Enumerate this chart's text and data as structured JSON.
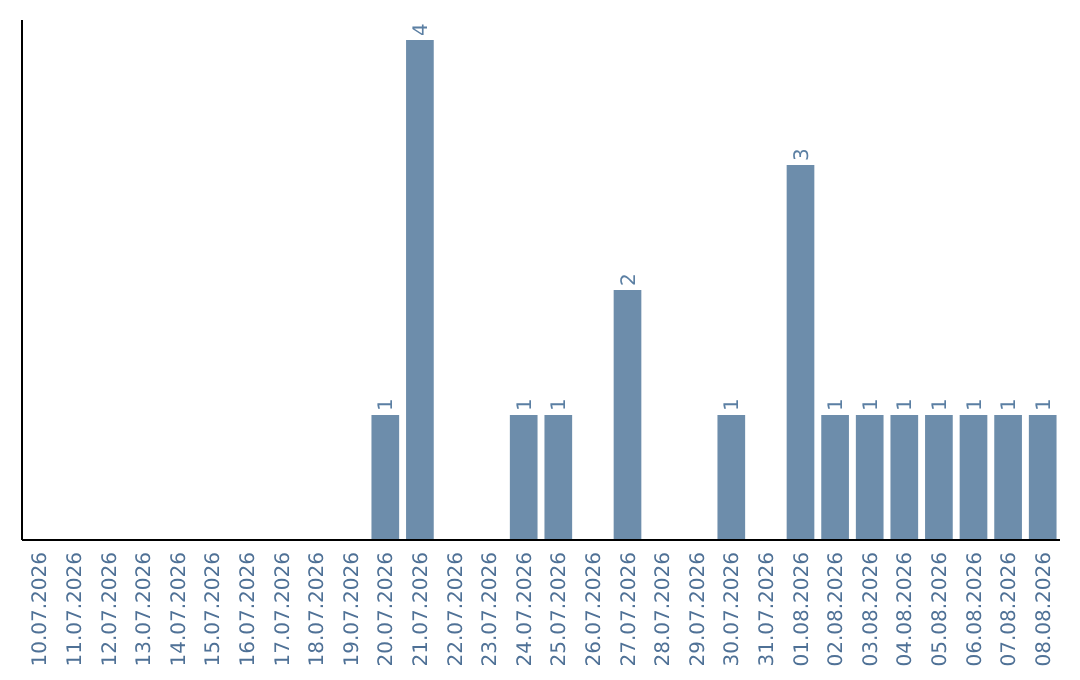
{
  "chart_data": {
    "type": "bar",
    "categories": [
      "10.07.2026",
      "11.07.2026",
      "12.07.2026",
      "13.07.2026",
      "14.07.2026",
      "15.07.2026",
      "16.07.2026",
      "17.07.2026",
      "18.07.2026",
      "19.07.2026",
      "20.07.2026",
      "21.07.2026",
      "22.07.2026",
      "23.07.2026",
      "24.07.2026",
      "25.07.2026",
      "26.07.2026",
      "27.07.2026",
      "28.07.2026",
      "29.07.2026",
      "30.07.2026",
      "31.07.2026",
      "01.08.2026",
      "02.08.2026",
      "03.08.2026",
      "04.08.2026",
      "05.08.2026",
      "06.08.2026",
      "07.08.2026",
      "08.08.2026"
    ],
    "values": [
      0,
      0,
      0,
      0,
      0,
      0,
      0,
      0,
      0,
      0,
      1,
      4,
      0,
      0,
      1,
      1,
      0,
      2,
      0,
      0,
      1,
      0,
      3,
      1,
      1,
      1,
      1,
      1,
      1,
      1
    ],
    "value_labels": [
      null,
      null,
      null,
      null,
      null,
      null,
      null,
      null,
      null,
      null,
      "1",
      "4",
      null,
      null,
      "1",
      "1",
      null,
      "2",
      null,
      null,
      "1",
      null,
      "3",
      "1",
      "1",
      "1",
      "1",
      "1",
      "1",
      "1"
    ],
    "color": "#6d8dab"
  }
}
